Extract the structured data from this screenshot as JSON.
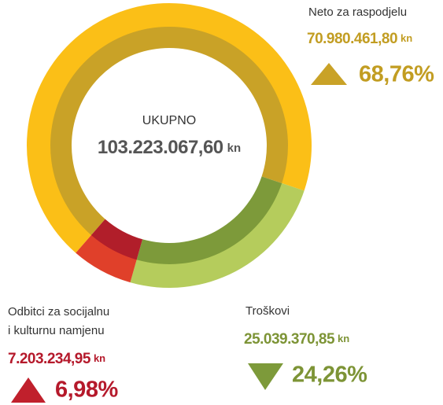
{
  "chart_data": {
    "type": "donut",
    "center_label": "UKUPNO",
    "center_amount": "103.223.067,60",
    "unit": "kn",
    "series": [
      {
        "name": "Neto za raspodjelu",
        "amount": "70.980.461,80",
        "value": 68.76,
        "value_label": "68,76%",
        "color": "#fbbf17",
        "inner_color": "#c9a227",
        "text_color": "#c29d22"
      },
      {
        "name": "Troškovi",
        "amount": "25.039.370,85",
        "value": 24.26,
        "value_label": "24,26%",
        "color": "#b5cc5c",
        "inner_color": "#7d9a3a",
        "text_color": "#7d9436"
      },
      {
        "name_lines": [
          "Odbitci za socijalnu",
          "i kulturnu namjenu"
        ],
        "amount": "7.203.234,95",
        "value": 6.98,
        "value_label": "6,98%",
        "color": "#e0402a",
        "inner_color": "#b11e2a",
        "text_color": "#b5192b"
      }
    ]
  }
}
